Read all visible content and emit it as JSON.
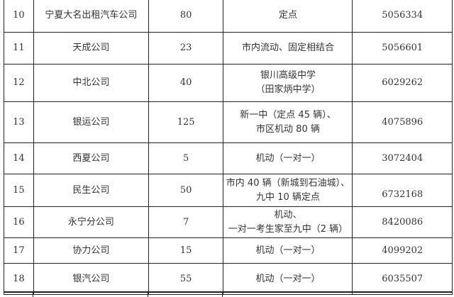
{
  "rows": [
    {
      "no": "10",
      "company": "宁夏大名出租汽车公司",
      "count": "80",
      "mode": [
        "定点"
      ],
      "phone": "5056334"
    },
    {
      "no": "11",
      "company": "天成公司",
      "count": "23",
      "mode": [
        "市内流动、固定相结合"
      ],
      "phone": "5056601"
    },
    {
      "no": "12",
      "company": "中北公司",
      "count": "40",
      "mode": [
        "银川高级中学",
        "（田家炳中学）"
      ],
      "phone": "6029262"
    },
    {
      "no": "13",
      "company": "银运公司",
      "count": "125",
      "mode": [
        "新一中（定点 45 辆）、",
        "市区机动 80 辆"
      ],
      "phone": "4075896"
    },
    {
      "no": "14",
      "company": "西夏公司",
      "count": "5",
      "mode": [
        "机动（一对一）"
      ],
      "phone": "3072404"
    },
    {
      "no": "15",
      "company": "民生公司",
      "count": "50",
      "mode": [
        "市内 40 辆（新城到石油城）、",
        "九中 10 辆定点"
      ],
      "phone": "6732168"
    },
    {
      "no": "16",
      "company": "永宁分公司",
      "count": "7",
      "mode": [
        "机动、",
        "一对一考生家至九中（2 辆）"
      ],
      "phone": "8420086"
    },
    {
      "no": "17",
      "company": "协力公司",
      "count": "15",
      "mode": [
        "机动（一对一）"
      ],
      "phone": "4099202"
    },
    {
      "no": "18",
      "company": "银汽公司",
      "count": "55",
      "mode": [
        "机动（一对一）"
      ],
      "phone": "6035507"
    }
  ]
}
